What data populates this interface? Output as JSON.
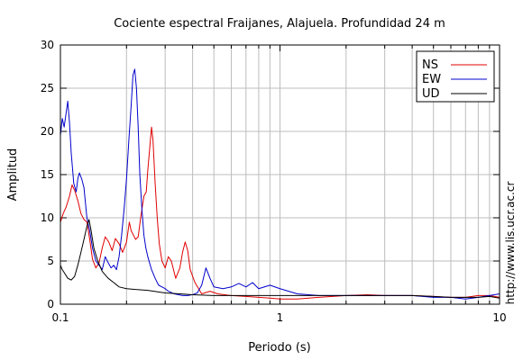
{
  "chart_data": {
    "type": "line",
    "title": "Cociente espectral Fraijanes, Alajuela. Profundidad 24 m",
    "xlabel": "Periodo (s)",
    "ylabel": "Amplitud",
    "x_scale": "log",
    "xlim": [
      0.1,
      10
    ],
    "ylim": [
      0,
      30
    ],
    "x_ticks": [
      {
        "value": 0.1,
        "label": "0.1"
      },
      {
        "value": 1,
        "label": "1"
      },
      {
        "value": 10,
        "label": "10"
      }
    ],
    "y_ticks": [
      {
        "value": 0,
        "label": "0"
      },
      {
        "value": 5,
        "label": "5"
      },
      {
        "value": 10,
        "label": "10"
      },
      {
        "value": 15,
        "label": "15"
      },
      {
        "value": 20,
        "label": "20"
      },
      {
        "value": 25,
        "label": "25"
      },
      {
        "value": 30,
        "label": "30"
      }
    ],
    "grid": true,
    "legend_position": "top-right",
    "watermark": "http://www.lis.ucr.ac.cr",
    "series": [
      {
        "name": "NS",
        "color": "#e00000",
        "points": [
          [
            0.1,
            9.5
          ],
          [
            0.103,
            10.5
          ],
          [
            0.106,
            11.2
          ],
          [
            0.11,
            12.5
          ],
          [
            0.113,
            13.8
          ],
          [
            0.116,
            13.2
          ],
          [
            0.12,
            12.0
          ],
          [
            0.124,
            10.5
          ],
          [
            0.128,
            9.8
          ],
          [
            0.132,
            9.5
          ],
          [
            0.136,
            7.5
          ],
          [
            0.14,
            5.2
          ],
          [
            0.145,
            4.2
          ],
          [
            0.15,
            4.8
          ],
          [
            0.155,
            6.5
          ],
          [
            0.16,
            7.8
          ],
          [
            0.166,
            7.2
          ],
          [
            0.172,
            6.2
          ],
          [
            0.178,
            7.6
          ],
          [
            0.185,
            7.0
          ],
          [
            0.192,
            6.0
          ],
          [
            0.2,
            7.2
          ],
          [
            0.206,
            9.5
          ],
          [
            0.21,
            8.5
          ],
          [
            0.215,
            8.0
          ],
          [
            0.22,
            7.5
          ],
          [
            0.226,
            7.8
          ],
          [
            0.232,
            10.0
          ],
          [
            0.24,
            12.5
          ],
          [
            0.246,
            13.0
          ],
          [
            0.25,
            15.5
          ],
          [
            0.255,
            18.0
          ],
          [
            0.26,
            20.5
          ],
          [
            0.264,
            19.0
          ],
          [
            0.27,
            14.0
          ],
          [
            0.276,
            10.0
          ],
          [
            0.282,
            7.0
          ],
          [
            0.29,
            5.0
          ],
          [
            0.3,
            4.2
          ],
          [
            0.31,
            5.5
          ],
          [
            0.32,
            5.0
          ],
          [
            0.335,
            3.0
          ],
          [
            0.35,
            4.2
          ],
          [
            0.36,
            6.0
          ],
          [
            0.37,
            7.2
          ],
          [
            0.38,
            6.2
          ],
          [
            0.39,
            4.0
          ],
          [
            0.41,
            2.5
          ],
          [
            0.44,
            1.2
          ],
          [
            0.48,
            1.5
          ],
          [
            0.52,
            1.2
          ],
          [
            0.6,
            1.0
          ],
          [
            0.7,
            0.9
          ],
          [
            0.8,
            0.8
          ],
          [
            0.9,
            0.7
          ],
          [
            1.0,
            0.6
          ],
          [
            1.2,
            0.6
          ],
          [
            1.5,
            0.8
          ],
          [
            2.0,
            1.0
          ],
          [
            2.5,
            1.1
          ],
          [
            3.0,
            1.0
          ],
          [
            4.0,
            1.0
          ],
          [
            5.0,
            0.9
          ],
          [
            6.0,
            0.8
          ],
          [
            7.0,
            0.8
          ],
          [
            8.0,
            1.0
          ],
          [
            9.0,
            1.0
          ],
          [
            10.0,
            0.8
          ]
        ]
      },
      {
        "name": "EW",
        "color": "#0000cc",
        "points": [
          [
            0.1,
            19.5
          ],
          [
            0.102,
            21.5
          ],
          [
            0.104,
            20.5
          ],
          [
            0.106,
            22.0
          ],
          [
            0.108,
            23.5
          ],
          [
            0.11,
            21.0
          ],
          [
            0.112,
            17.5
          ],
          [
            0.115,
            14.0
          ],
          [
            0.118,
            13.0
          ],
          [
            0.12,
            14.5
          ],
          [
            0.122,
            15.2
          ],
          [
            0.125,
            14.5
          ],
          [
            0.128,
            13.5
          ],
          [
            0.132,
            10.0
          ],
          [
            0.136,
            8.5
          ],
          [
            0.14,
            6.5
          ],
          [
            0.145,
            5.0
          ],
          [
            0.15,
            4.5
          ],
          [
            0.155,
            4.0
          ],
          [
            0.16,
            5.5
          ],
          [
            0.165,
            4.8
          ],
          [
            0.17,
            4.2
          ],
          [
            0.175,
            4.5
          ],
          [
            0.18,
            4.0
          ],
          [
            0.185,
            5.5
          ],
          [
            0.19,
            8.0
          ],
          [
            0.195,
            11.0
          ],
          [
            0.2,
            14.5
          ],
          [
            0.205,
            19.0
          ],
          [
            0.21,
            23.0
          ],
          [
            0.214,
            26.5
          ],
          [
            0.218,
            27.2
          ],
          [
            0.222,
            25.0
          ],
          [
            0.226,
            20.5
          ],
          [
            0.23,
            15.0
          ],
          [
            0.235,
            11.0
          ],
          [
            0.24,
            8.0
          ],
          [
            0.245,
            6.5
          ],
          [
            0.25,
            5.5
          ],
          [
            0.26,
            4.0
          ],
          [
            0.27,
            3.0
          ],
          [
            0.28,
            2.2
          ],
          [
            0.29,
            2.0
          ],
          [
            0.3,
            1.8
          ],
          [
            0.31,
            1.5
          ],
          [
            0.33,
            1.2
          ],
          [
            0.36,
            1.0
          ],
          [
            0.38,
            1.0
          ],
          [
            0.4,
            1.1
          ],
          [
            0.42,
            1.3
          ],
          [
            0.44,
            2.2
          ],
          [
            0.46,
            4.2
          ],
          [
            0.48,
            3.0
          ],
          [
            0.5,
            2.0
          ],
          [
            0.55,
            1.8
          ],
          [
            0.6,
            2.0
          ],
          [
            0.65,
            2.4
          ],
          [
            0.7,
            2.0
          ],
          [
            0.75,
            2.5
          ],
          [
            0.8,
            1.8
          ],
          [
            0.9,
            2.2
          ],
          [
            1.0,
            1.8
          ],
          [
            1.2,
            1.2
          ],
          [
            1.5,
            1.0
          ],
          [
            2.0,
            1.0
          ],
          [
            2.5,
            1.0
          ],
          [
            3.0,
            1.0
          ],
          [
            4.0,
            1.0
          ],
          [
            5.0,
            0.8
          ],
          [
            6.0,
            0.8
          ],
          [
            7.0,
            0.6
          ],
          [
            8.0,
            0.8
          ],
          [
            9.0,
            1.0
          ],
          [
            10.0,
            1.2
          ]
        ]
      },
      {
        "name": "UD",
        "color": "#000000",
        "points": [
          [
            0.1,
            4.5
          ],
          [
            0.102,
            4.0
          ],
          [
            0.105,
            3.5
          ],
          [
            0.108,
            3.0
          ],
          [
            0.112,
            2.8
          ],
          [
            0.116,
            3.2
          ],
          [
            0.12,
            4.5
          ],
          [
            0.124,
            6.0
          ],
          [
            0.128,
            7.5
          ],
          [
            0.132,
            9.0
          ],
          [
            0.135,
            9.8
          ],
          [
            0.138,
            8.5
          ],
          [
            0.142,
            6.5
          ],
          [
            0.148,
            5.0
          ],
          [
            0.155,
            3.8
          ],
          [
            0.165,
            3.0
          ],
          [
            0.175,
            2.5
          ],
          [
            0.185,
            2.0
          ],
          [
            0.2,
            1.8
          ],
          [
            0.22,
            1.7
          ],
          [
            0.25,
            1.6
          ],
          [
            0.3,
            1.3
          ],
          [
            0.35,
            1.2
          ],
          [
            0.4,
            1.1
          ],
          [
            0.5,
            1.0
          ],
          [
            0.6,
            1.0
          ],
          [
            0.7,
            1.0
          ],
          [
            0.8,
            1.0
          ],
          [
            0.9,
            1.0
          ],
          [
            1.0,
            1.0
          ],
          [
            1.2,
            1.0
          ],
          [
            1.5,
            1.0
          ],
          [
            2.0,
            1.0
          ],
          [
            3.0,
            1.0
          ],
          [
            4.0,
            1.0
          ],
          [
            5.0,
            0.9
          ],
          [
            6.0,
            0.8
          ],
          [
            7.0,
            0.8
          ],
          [
            8.0,
            0.8
          ],
          [
            9.0,
            0.9
          ],
          [
            10.0,
            0.7
          ]
        ]
      }
    ]
  }
}
